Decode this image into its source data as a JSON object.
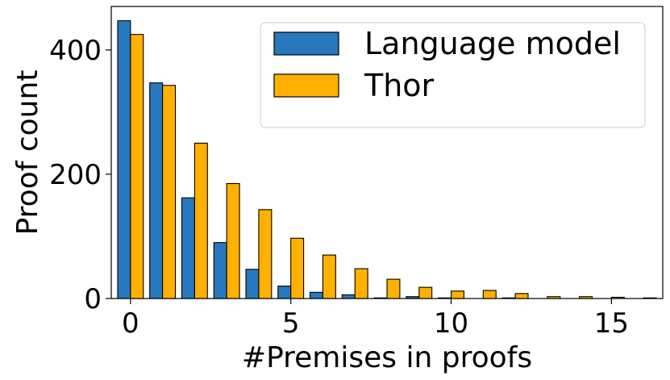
{
  "chart_data": {
    "type": "bar",
    "xlabel": "#Premises in proofs",
    "ylabel": "Proof count",
    "x": [
      0,
      1,
      2,
      3,
      4,
      5,
      6,
      7,
      8,
      9,
      10,
      11,
      12,
      13,
      14,
      15,
      16
    ],
    "xlim": [
      -0.6,
      16.6
    ],
    "ylim": [
      0,
      470
    ],
    "xticks": [
      0,
      5,
      10,
      15
    ],
    "yticks": [
      0,
      200,
      400
    ],
    "grid": false,
    "legend_position": "top-right",
    "series": [
      {
        "name": "Language model",
        "color": "#2878be",
        "values": [
          447,
          347,
          162,
          90,
          47,
          20,
          10,
          6,
          1,
          3,
          1,
          0,
          1,
          0,
          0,
          0,
          0
        ]
      },
      {
        "name": "Thor",
        "color": "#ffb000",
        "values": [
          425,
          343,
          250,
          185,
          143,
          97,
          70,
          48,
          31,
          18,
          12,
          13,
          8,
          3,
          3,
          2,
          1
        ]
      }
    ]
  }
}
